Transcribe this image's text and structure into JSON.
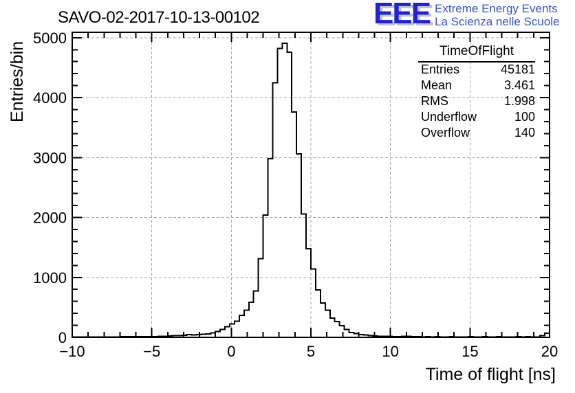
{
  "header": {
    "title": "SAVO-02-2017-10-13-00102"
  },
  "logo": {
    "acronym": "EEE",
    "line1": "Extreme Energy Events",
    "line2": "La Scienza nelle Scuole",
    "acronym_color": "#2121d6",
    "text_color": "#3555cd"
  },
  "stats": {
    "title": "TimeOfFlight",
    "rows": [
      {
        "label": "Entries",
        "value": "45181"
      },
      {
        "label": "Mean",
        "value": "3.461"
      },
      {
        "label": "RMS",
        "value": "1.998"
      },
      {
        "label": "Underflow",
        "value": "100"
      },
      {
        "label": "Overflow",
        "value": "140"
      }
    ]
  },
  "chart_data": {
    "type": "bar",
    "style": "step-outline-histogram",
    "title": "SAVO-02-2017-10-13-00102",
    "xlabel": "Time of flight [ns]",
    "ylabel": "Entries/bin",
    "xlim": [
      -10,
      20
    ],
    "ylim": [
      0,
      5090
    ],
    "grid": true,
    "legend_position": "none",
    "bin_start": -10,
    "bin_width": 0.3,
    "x_major_ticks": [
      -10,
      -5,
      0,
      5,
      10,
      15,
      20
    ],
    "x_tick_labels": [
      "−10",
      "−5",
      "0",
      "5",
      "10",
      "15",
      "20"
    ],
    "x_minor_step": 1,
    "y_major_ticks": [
      0,
      1000,
      2000,
      3000,
      4000,
      5000
    ],
    "y_tick_labels": [
      "0",
      "1000",
      "2000",
      "3000",
      "4000",
      "5000"
    ],
    "y_minor_step": 200,
    "line_color": "#000000",
    "grid_color": "#a6a6a6",
    "values": [
      4,
      5,
      5,
      6,
      6,
      8,
      7,
      7,
      8,
      8,
      9,
      9,
      10,
      10,
      11,
      12,
      13,
      14,
      16,
      18,
      22,
      26,
      30,
      36,
      46,
      42,
      46,
      52,
      60,
      74,
      95,
      130,
      180,
      225,
      272,
      364,
      451,
      585,
      775,
      1310,
      2040,
      2980,
      4250,
      4820,
      4905,
      4760,
      3760,
      3060,
      2060,
      1480,
      1140,
      790,
      574,
      453,
      320,
      263,
      194,
      129,
      80,
      65,
      48,
      40,
      28,
      24,
      20,
      18,
      15,
      14,
      12,
      20,
      16,
      10,
      9,
      8,
      10,
      7,
      9,
      8,
      7,
      9,
      6,
      8,
      7,
      9,
      8,
      6,
      9,
      7,
      8,
      10,
      7,
      8,
      6,
      9,
      7,
      12,
      8,
      6,
      30,
      70
    ]
  }
}
